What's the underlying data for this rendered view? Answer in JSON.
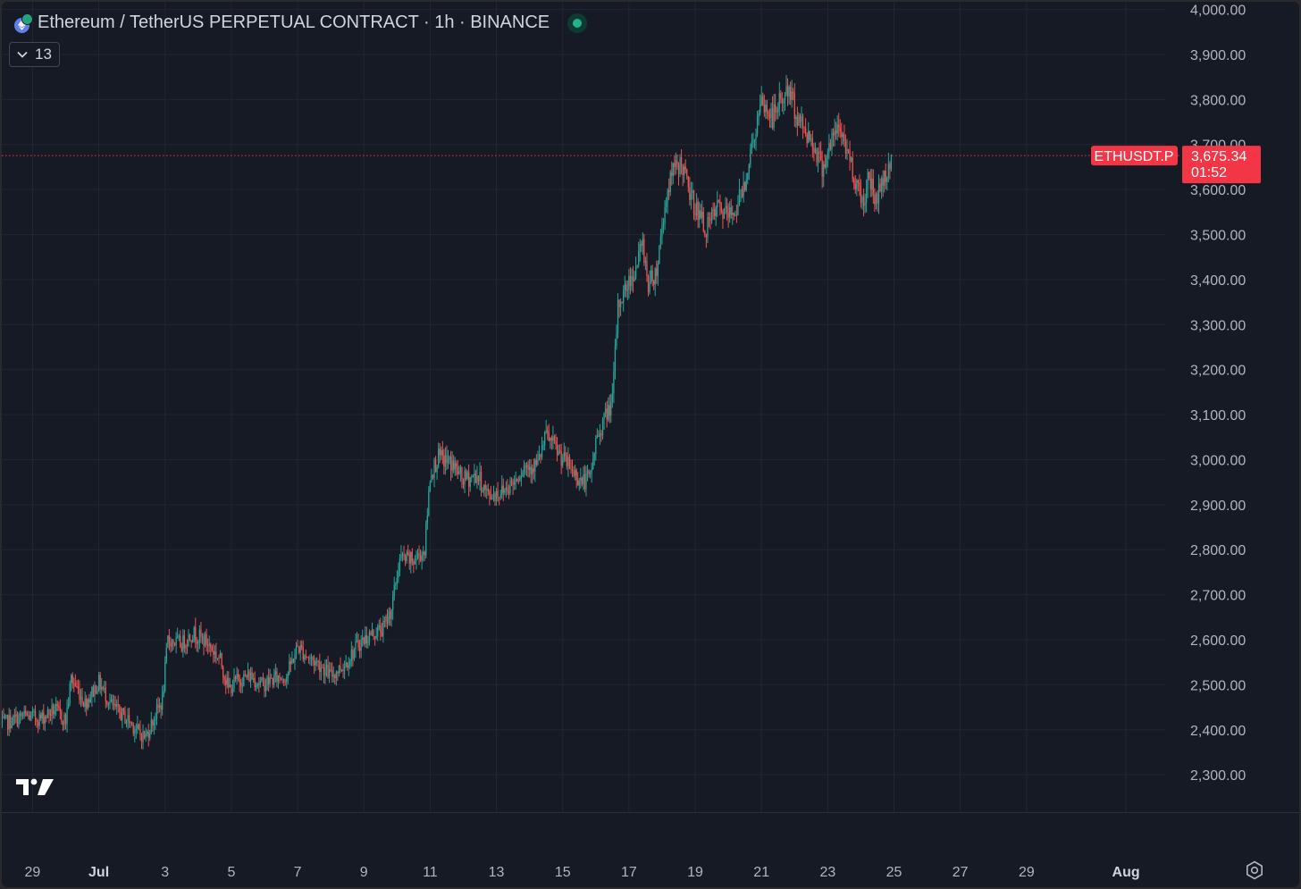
{
  "header": {
    "title": "Ethereum / TetherUS PERPETUAL CONTRACT · 1h · BINANCE",
    "indicators_count": "13"
  },
  "icons": {
    "symbol": "eth-usdt-coin-icon",
    "status": "market-open-dot-icon",
    "collapse": "chevron-down-icon",
    "logo": "tradingview-logo-icon",
    "settings": "settings-gear-icon"
  },
  "colors": {
    "background": "#161a25",
    "up": "#26a69a",
    "down": "#ef5350",
    "grid": "#232632",
    "text": "#b2b5be",
    "price_label": "#f23645"
  },
  "chart_data": {
    "type": "candlestick",
    "symbol": "ETHUSDT.P",
    "interval": "1h",
    "y_axis": {
      "ticks": [
        2300,
        2400,
        2500,
        2600,
        2700,
        2800,
        2900,
        3000,
        3100,
        3200,
        3300,
        3400,
        3500,
        3600,
        3700,
        3800,
        3900,
        4000
      ],
      "tick_labels": [
        "2,300.00",
        "2,400.00",
        "2,500.00",
        "2,600.00",
        "2,700.00",
        "2,800.00",
        "2,900.00",
        "3,000.00",
        "3,100.00",
        "3,200.00",
        "3,300.00",
        "3,400.00",
        "3,500.00",
        "3,600.00",
        "3,700.00",
        "3,800.00",
        "3,900.00",
        "4,000.00"
      ],
      "range": [
        2217,
        4017
      ],
      "position": "right"
    },
    "x_axis": {
      "tick_labels": [
        "29",
        "Jul",
        "3",
        "5",
        "7",
        "9",
        "11",
        "13",
        "15",
        "17",
        "19",
        "21",
        "23",
        "25",
        "27",
        "29",
        "Aug"
      ],
      "tick_days": [
        -2,
        0,
        2,
        4,
        6,
        8,
        10,
        12,
        14,
        16,
        18,
        20,
        22,
        24,
        26,
        28,
        31
      ],
      "bold_labels": [
        "Jul",
        "Aug"
      ]
    },
    "series": [
      {
        "name": "ETHUSDT.P",
        "close_path": [
          [
            "2024-06-28T00:00",
            2410
          ],
          [
            "2024-06-28T18:00",
            2430
          ],
          [
            "2024-06-29T06:00",
            2425
          ],
          [
            "2024-06-29T16:00",
            2445
          ],
          [
            "2024-06-30T00:00",
            2420
          ],
          [
            "2024-06-30T04:00",
            2515
          ],
          [
            "2024-06-30T14:00",
            2460
          ],
          [
            "2024-07-01T00:00",
            2505
          ],
          [
            "2024-07-01T10:00",
            2450
          ],
          [
            "2024-07-01T22:00",
            2420
          ],
          [
            "2024-07-02T06:00",
            2390
          ],
          [
            "2024-07-02T10:00",
            2385
          ],
          [
            "2024-07-02T18:00",
            2440
          ],
          [
            "2024-07-02T22:00",
            2465
          ],
          [
            "2024-07-03T02:00",
            2600
          ],
          [
            "2024-07-03T12:00",
            2590
          ],
          [
            "2024-07-03T20:00",
            2615
          ],
          [
            "2024-07-04T06:00",
            2595
          ],
          [
            "2024-07-04T16:00",
            2555
          ],
          [
            "2024-07-04T22:00",
            2490
          ],
          [
            "2024-07-05T04:00",
            2510
          ],
          [
            "2024-07-05T14:00",
            2520
          ],
          [
            "2024-07-05T22:00",
            2500
          ],
          [
            "2024-07-06T08:00",
            2515
          ],
          [
            "2024-07-06T16:00",
            2520
          ],
          [
            "2024-07-07T00:00",
            2585
          ],
          [
            "2024-07-07T08:00",
            2560
          ],
          [
            "2024-07-07T16:00",
            2545
          ],
          [
            "2024-07-08T00:00",
            2520
          ],
          [
            "2024-07-08T10:00",
            2545
          ],
          [
            "2024-07-08T20:00",
            2590
          ],
          [
            "2024-07-09T04:00",
            2610
          ],
          [
            "2024-07-09T14:00",
            2625
          ],
          [
            "2024-07-09T20:00",
            2670
          ],
          [
            "2024-07-10T02:00",
            2780
          ],
          [
            "2024-07-10T12:00",
            2775
          ],
          [
            "2024-07-10T20:00",
            2800
          ],
          [
            "2024-07-11T00:00",
            2965
          ],
          [
            "2024-07-11T06:00",
            3005
          ],
          [
            "2024-07-11T16:00",
            2990
          ],
          [
            "2024-07-12T00:00",
            2955
          ],
          [
            "2024-07-12T10:00",
            2965
          ],
          [
            "2024-07-12T18:00",
            2920
          ],
          [
            "2024-07-13T04:00",
            2930
          ],
          [
            "2024-07-13T12:00",
            2950
          ],
          [
            "2024-07-13T20:00",
            2985
          ],
          [
            "2024-07-14T06:00",
            2990
          ],
          [
            "2024-07-14T12:00",
            3055
          ],
          [
            "2024-07-14T22:00",
            3010
          ],
          [
            "2024-07-15T06:00",
            2980
          ],
          [
            "2024-07-15T14:00",
            2950
          ],
          [
            "2024-07-15T20:00",
            2960
          ],
          [
            "2024-07-16T00:00",
            3040
          ],
          [
            "2024-07-16T06:00",
            3090
          ],
          [
            "2024-07-16T12:00",
            3130
          ],
          [
            "2024-07-16T16:00",
            3340
          ],
          [
            "2024-07-16T20:00",
            3370
          ],
          [
            "2024-07-17T04:00",
            3420
          ],
          [
            "2024-07-17T10:00",
            3480
          ],
          [
            "2024-07-17T14:00",
            3390
          ],
          [
            "2024-07-17T20:00",
            3420
          ],
          [
            "2024-07-18T00:00",
            3520
          ],
          [
            "2024-07-18T04:00",
            3600
          ],
          [
            "2024-07-18T08:00",
            3640
          ],
          [
            "2024-07-18T14:00",
            3660
          ],
          [
            "2024-07-18T20:00",
            3590
          ],
          [
            "2024-07-19T02:00",
            3550
          ],
          [
            "2024-07-19T08:00",
            3510
          ],
          [
            "2024-07-19T16:00",
            3560
          ],
          [
            "2024-07-20T00:00",
            3540
          ],
          [
            "2024-07-20T06:00",
            3560
          ],
          [
            "2024-07-20T12:00",
            3620
          ],
          [
            "2024-07-20T18:00",
            3710
          ],
          [
            "2024-07-21T00:00",
            3790
          ],
          [
            "2024-07-21T08:00",
            3760
          ],
          [
            "2024-07-21T14:00",
            3800
          ],
          [
            "2024-07-21T20:00",
            3820
          ],
          [
            "2024-07-22T02:00",
            3760
          ],
          [
            "2024-07-22T08:00",
            3730
          ],
          [
            "2024-07-22T14:00",
            3700
          ],
          [
            "2024-07-22T20:00",
            3650
          ],
          [
            "2024-07-23T02:00",
            3700
          ],
          [
            "2024-07-23T08:00",
            3740
          ],
          [
            "2024-07-23T14:00",
            3690
          ],
          [
            "2024-07-23T20:00",
            3620
          ],
          [
            "2024-07-24T02:00",
            3570
          ],
          [
            "2024-07-24T06:00",
            3640
          ],
          [
            "2024-07-24T10:00",
            3570
          ],
          [
            "2024-07-24T14:00",
            3610
          ],
          [
            "2024-07-24T18:00",
            3630
          ],
          [
            "2024-07-24T22:00",
            3675
          ]
        ]
      }
    ],
    "last_price": {
      "symbol_label": "ETHUSDT.P",
      "price": 3675.34,
      "price_label": "3,675.34",
      "countdown": "01:52"
    },
    "grid": true,
    "legend": "none"
  }
}
